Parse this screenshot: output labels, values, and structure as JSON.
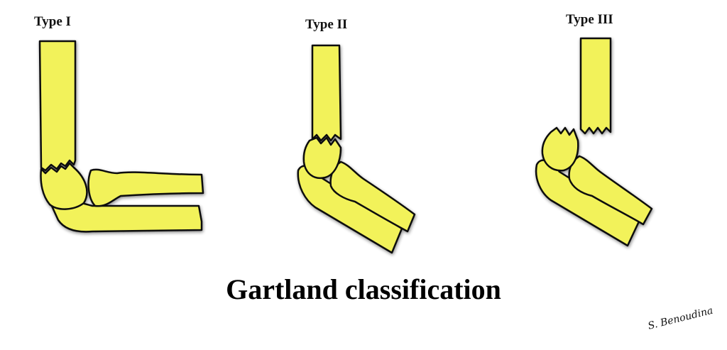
{
  "diagram": {
    "title": "Gartland classification",
    "types": [
      {
        "label": "Type I"
      },
      {
        "label": "Type II"
      },
      {
        "label": "Type III"
      }
    ],
    "signature": "S. Benoudina"
  },
  "colors": {
    "bone_fill": "#f2f25a",
    "outline": "#111111",
    "shadow": "#9a9a7a",
    "background": "#ffffff"
  }
}
